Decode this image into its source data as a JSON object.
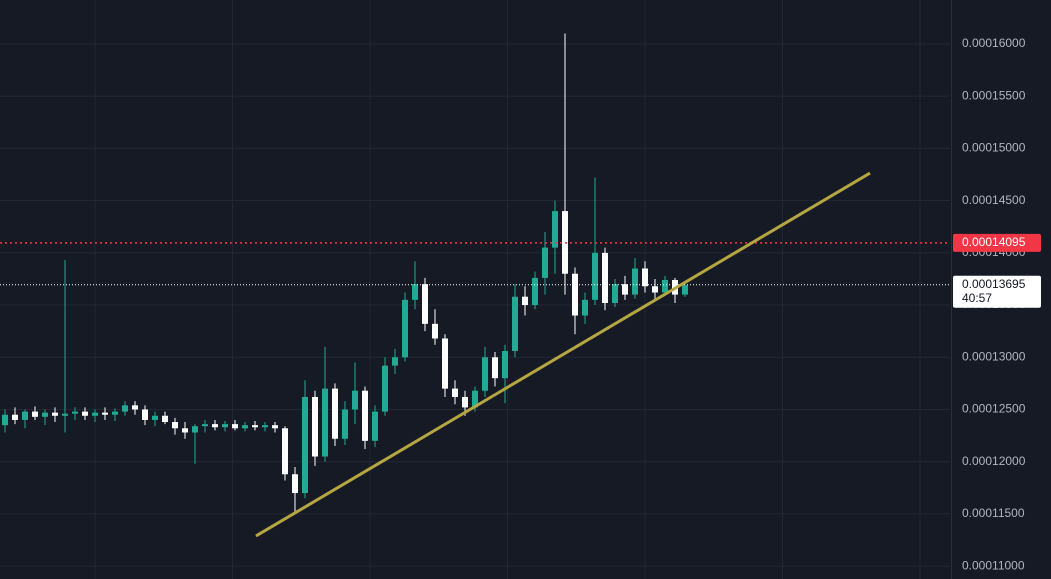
{
  "chart_data": {
    "type": "candlestick",
    "xlim": [
      -0.5,
      94.5
    ],
    "ylim": [
      0.00010877,
      0.00016421
    ],
    "yticks": [
      {
        "value": 0.00011,
        "label": "0.00011000"
      },
      {
        "value": 0.000115,
        "label": "0.00011500"
      },
      {
        "value": 0.00012,
        "label": "0.00012000"
      },
      {
        "value": 0.000125,
        "label": "0.00012500"
      },
      {
        "value": 0.00013,
        "label": "0.00013000"
      },
      {
        "value": 0.000135,
        "label": "0.00013500"
      },
      {
        "value": 0.00014,
        "label": "0.00014000"
      },
      {
        "value": 0.000145,
        "label": "0.00014500"
      },
      {
        "value": 0.00015,
        "label": "0.00015000"
      },
      {
        "value": 0.000155,
        "label": "0.00015500"
      },
      {
        "value": 0.00016,
        "label": "0.00016000"
      }
    ],
    "grid": true,
    "up_color": "#22ab94",
    "down_color": "#ffffff",
    "ohlc": [
      [
        0.0001235,
        0.000125,
        0.0001228,
        0.0001245
      ],
      [
        0.0001245,
        0.0001252,
        0.0001236,
        0.000124
      ],
      [
        0.000124,
        0.000125,
        0.0001232,
        0.0001248
      ],
      [
        0.0001248,
        0.0001253,
        0.000124,
        0.0001243
      ],
      [
        0.0001243,
        0.000125,
        0.0001235,
        0.0001247
      ],
      [
        0.0001247,
        0.0001252,
        0.0001238,
        0.0001244
      ],
      [
        0.0001244,
        0.0001393,
        0.0001228,
        0.0001246
      ],
      [
        0.0001246,
        0.0001252,
        0.000124,
        0.0001248
      ],
      [
        0.0001248,
        0.0001252,
        0.000124,
        0.0001244
      ],
      [
        0.0001244,
        0.000125,
        0.0001238,
        0.0001247
      ],
      [
        0.0001247,
        0.0001252,
        0.000124,
        0.0001245
      ],
      [
        0.0001245,
        0.0001251,
        0.0001239,
        0.0001248
      ],
      [
        0.0001248,
        0.0001258,
        0.0001244,
        0.0001254
      ],
      [
        0.0001254,
        0.0001258,
        0.0001245,
        0.000125
      ],
      [
        0.000125,
        0.0001254,
        0.0001235,
        0.000124
      ],
      [
        0.000124,
        0.0001248,
        0.0001234,
        0.0001244
      ],
      [
        0.0001244,
        0.0001248,
        0.0001236,
        0.0001238
      ],
      [
        0.0001238,
        0.0001242,
        0.0001226,
        0.0001232
      ],
      [
        0.0001232,
        0.0001238,
        0.0001222,
        0.0001228
      ],
      [
        0.0001228,
        0.0001236,
        0.0001198,
        0.0001234
      ],
      [
        0.0001234,
        0.000124,
        0.0001228,
        0.0001236
      ],
      [
        0.0001236,
        0.000124,
        0.000123,
        0.0001233
      ],
      [
        0.0001233,
        0.0001239,
        0.0001229,
        0.0001236
      ],
      [
        0.0001236,
        0.000124,
        0.000123,
        0.0001232
      ],
      [
        0.0001232,
        0.0001238,
        0.0001229,
        0.0001235
      ],
      [
        0.0001235,
        0.0001239,
        0.000123,
        0.0001233
      ],
      [
        0.0001233,
        0.0001238,
        0.0001229,
        0.0001235
      ],
      [
        0.0001235,
        0.0001238,
        0.0001228,
        0.0001232
      ],
      [
        0.0001232,
        0.0001234,
        0.0001182,
        0.0001188
      ],
      [
        0.0001188,
        0.0001195,
        0.0001152,
        0.000117
      ],
      [
        0.000117,
        0.0001278,
        0.0001165,
        0.0001262
      ],
      [
        0.0001262,
        0.0001268,
        0.0001196,
        0.0001205
      ],
      [
        0.0001205,
        0.000131,
        0.00012,
        0.000127
      ],
      [
        0.000127,
        0.0001275,
        0.0001215,
        0.0001222
      ],
      [
        0.0001222,
        0.0001258,
        0.0001216,
        0.000125
      ],
      [
        0.000125,
        0.0001295,
        0.0001236,
        0.0001268
      ],
      [
        0.0001268,
        0.0001272,
        0.0001212,
        0.000122
      ],
      [
        0.000122,
        0.0001254,
        0.0001214,
        0.0001248
      ],
      [
        0.0001248,
        0.00013,
        0.0001244,
        0.0001292
      ],
      [
        0.0001292,
        0.0001308,
        0.0001284,
        0.00013
      ],
      [
        0.00013,
        0.0001362,
        0.0001296,
        0.0001355
      ],
      [
        0.0001355,
        0.0001392,
        0.0001346,
        0.000137
      ],
      [
        0.000137,
        0.0001376,
        0.0001325,
        0.0001332
      ],
      [
        0.0001332,
        0.0001346,
        0.0001312,
        0.0001318
      ],
      [
        0.0001318,
        0.0001322,
        0.0001262,
        0.000127
      ],
      [
        0.000127,
        0.0001278,
        0.0001255,
        0.0001262
      ],
      [
        0.0001262,
        0.0001268,
        0.0001244,
        0.0001252
      ],
      [
        0.0001252,
        0.0001272,
        0.0001248,
        0.0001268
      ],
      [
        0.0001268,
        0.000131,
        0.0001262,
        0.00013
      ],
      [
        0.00013,
        0.0001305,
        0.0001272,
        0.000128
      ],
      [
        0.000128,
        0.0001312,
        0.0001256,
        0.0001306
      ],
      [
        0.0001306,
        0.000137,
        0.00013,
        0.0001358
      ],
      [
        0.0001358,
        0.0001368,
        0.000134,
        0.000135
      ],
      [
        0.000135,
        0.0001382,
        0.0001346,
        0.0001376
      ],
      [
        0.0001376,
        0.000142,
        0.000136,
        0.0001405
      ],
      [
        0.0001405,
        0.000145,
        0.000138,
        0.000144
      ],
      [
        0.000144,
        0.000161,
        0.000136,
        0.000138
      ],
      [
        0.000138,
        0.0001386,
        0.0001322,
        0.000134
      ],
      [
        0.000134,
        0.0001362,
        0.0001332,
        0.0001355
      ],
      [
        0.0001355,
        0.0001472,
        0.000135,
        0.00014
      ],
      [
        0.00014,
        0.0001405,
        0.0001345,
        0.0001352
      ],
      [
        0.0001352,
        0.0001375,
        0.0001348,
        0.000137
      ],
      [
        0.000137,
        0.0001378,
        0.0001355,
        0.000136
      ],
      [
        0.000136,
        0.0001395,
        0.0001356,
        0.0001385
      ],
      [
        0.0001385,
        0.0001392,
        0.0001362,
        0.0001368
      ],
      [
        0.0001368,
        0.0001375,
        0.0001355,
        0.0001362
      ],
      [
        0.0001362,
        0.0001378,
        0.000136,
        0.0001374
      ],
      [
        0.0001374,
        0.0001376,
        0.0001352,
        0.000136
      ],
      [
        0.000136,
        0.0001372,
        0.0001358,
        0.0001369
      ]
    ],
    "trend_line": {
      "x": [
        25.1,
        86.5
      ],
      "y": [
        0.00011289,
        0.00014764
      ],
      "color": "#b5a642"
    },
    "alert_line": {
      "value": 0.00014095,
      "color": "#f23645"
    },
    "price_line": {
      "value": 0.00013695,
      "countdown": "40:57"
    }
  }
}
